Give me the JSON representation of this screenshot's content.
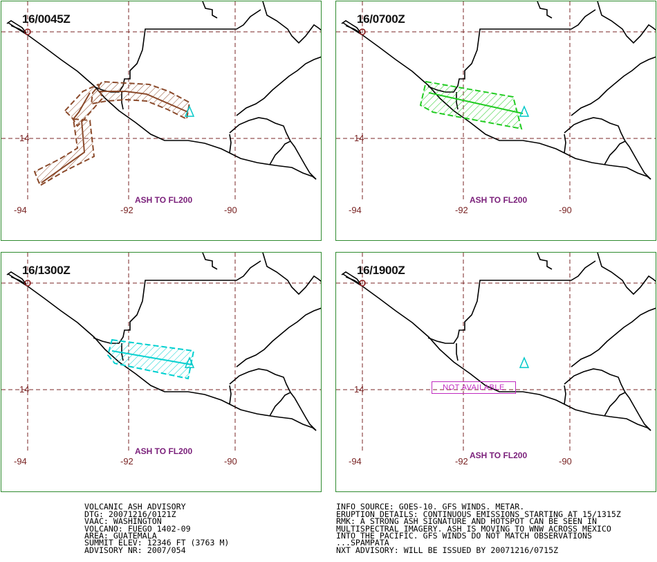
{
  "panels": [
    {
      "time": "16/0045Z",
      "lat_label": "14",
      "lon_labels": [
        "-94",
        "-92",
        "-90"
      ],
      "ash_label": "ASH TO FL200",
      "na_label": ""
    },
    {
      "time": "16/0700Z",
      "lat_label": "14",
      "lon_labels": [
        "-94",
        "-92",
        "-90"
      ],
      "ash_label": "ASH TO FL200",
      "na_label": ""
    },
    {
      "time": "16/1300Z",
      "lat_label": "14",
      "lon_labels": [
        "-94",
        "-92",
        "-90"
      ],
      "ash_label": "ASH TO FL200",
      "na_label": ""
    },
    {
      "time": "16/1900Z",
      "lat_label": "14",
      "lon_labels": [
        "-94",
        "-92",
        "-90"
      ],
      "ash_label": "ASH TO FL200",
      "na_label": "NOT AVAILABLE"
    }
  ],
  "colors": {
    "panel_border": "#2e8b2e",
    "grid": "#7a2525",
    "coast": "#000000",
    "volcano": "#00c8c8",
    "ash_0045": "#8b4a2b",
    "ash_0700": "#22cc22",
    "ash_1300": "#00d0d0",
    "ash_label": "#7a1f7a",
    "na_box": "#c02ac0"
  },
  "advisory_left": [
    "VOLCANIC ASH ADVISORY",
    "DTG: 20071216/0121Z",
    "VAAC: WASHINGTON",
    "VOLCANO: FUEGO 1402-09",
    "AREA: GUATEMALA",
    "SUMMIT ELEV: 12346 FT (3763 M)",
    "ADVISORY NR: 2007/054"
  ],
  "advisory_right": [
    "INFO SOURCE: GOES-10. GFS WINDS. METAR.",
    "ERUPTION DETAILS: CONTINUOUS EMISSIONS STARTING AT 15/1315Z",
    "RMK: A STRONG ASH SIGNATURE AND HOTSPOT CAN BE SEEN IN",
    "MULTISPECTRAL IMAGERY. ASH IS MOVING TO WNW ACROSS MEXICO",
    "INTO THE PACIFIC. GFS WINDS DO NOT MATCH OBSERVATIONS",
    "...SPAMPATA",
    "NXT ADVISORY: WILL BE ISSUED BY 20071216/0715Z"
  ]
}
